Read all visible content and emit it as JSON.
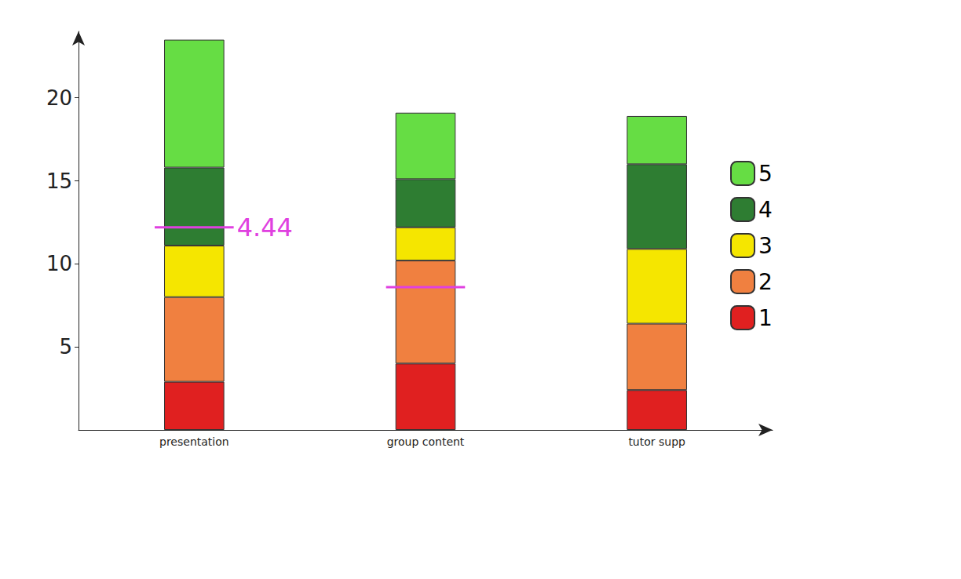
{
  "chart_data": {
    "type": "bar",
    "stacked": true,
    "grid": false,
    "legend": "right",
    "categories": [
      "presentation",
      "group content",
      "tutor supp"
    ],
    "series": [
      {
        "name": "1",
        "color": "#e02020",
        "values": [
          2.9,
          4.0,
          2.4
        ]
      },
      {
        "name": "2",
        "color": "#f08040",
        "values": [
          5.1,
          6.2,
          4.0
        ]
      },
      {
        "name": "3",
        "color": "#f5e600",
        "values": [
          3.1,
          2.0,
          4.5
        ]
      },
      {
        "name": "4",
        "color": "#2e7d32",
        "values": [
          4.7,
          2.9,
          5.1
        ]
      },
      {
        "name": "5",
        "color": "#66dd44",
        "values": [
          7.7,
          4.0,
          2.9
        ]
      }
    ],
    "ylim": [
      0,
      24
    ],
    "yticks": [
      5,
      10,
      15,
      20
    ],
    "reference_lines": [
      {
        "category": "presentation",
        "value": 12.2,
        "label": "4.44",
        "color": "#e040e0"
      },
      {
        "category": "group content",
        "value": 8.6,
        "color": "#e040e0"
      }
    ]
  }
}
